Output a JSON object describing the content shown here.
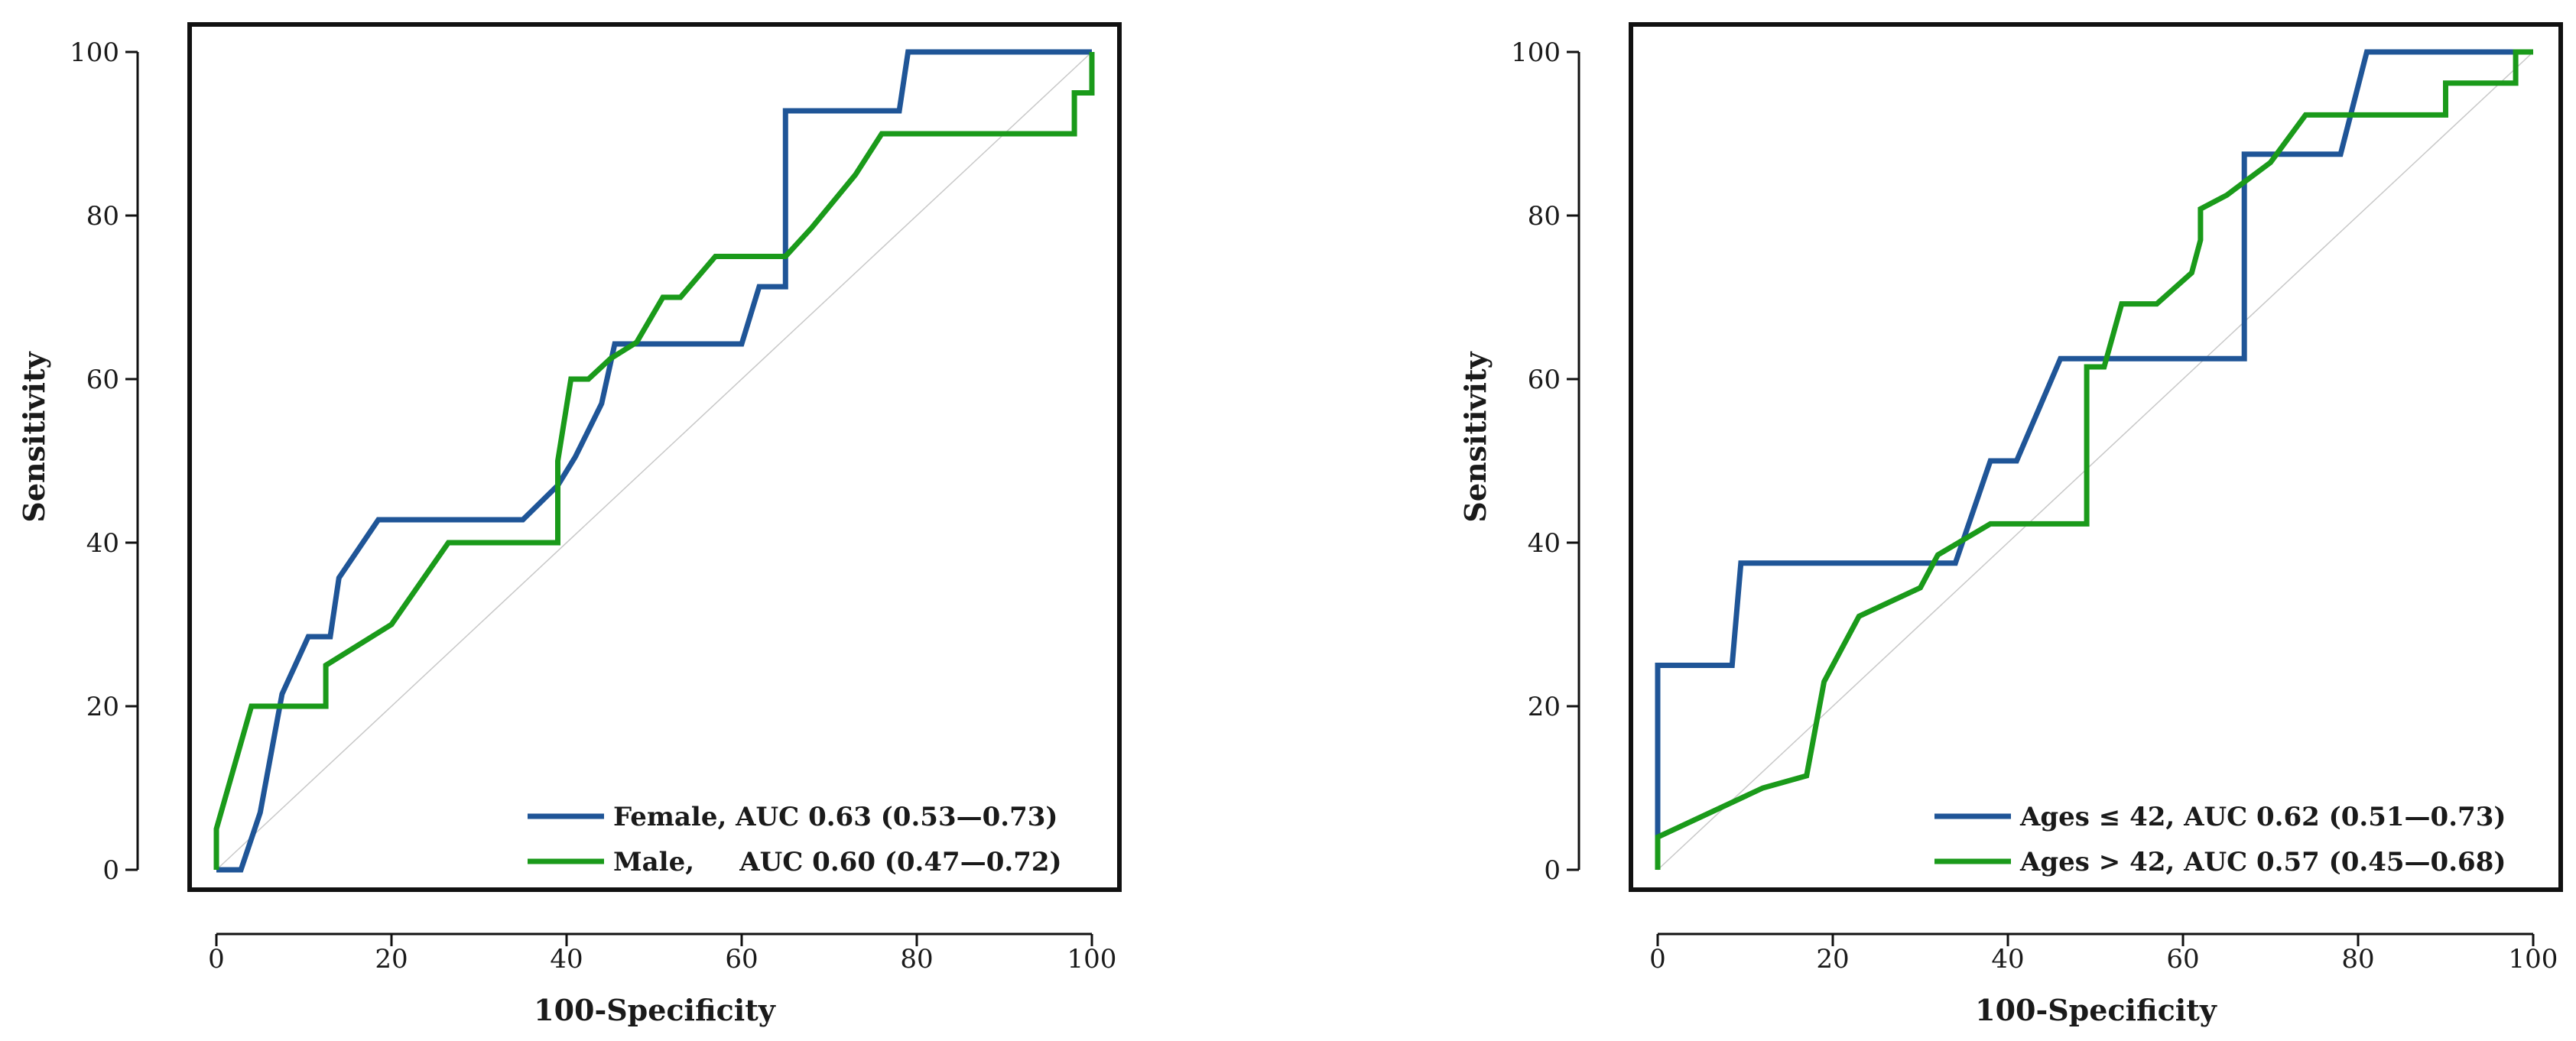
{
  "chart_data": [
    {
      "type": "line",
      "xlabel": "100-Specificity",
      "ylabel": "Sensitivity",
      "xlim": [
        0,
        100
      ],
      "ylim": [
        0,
        100
      ],
      "xticks": [
        "0",
        "20",
        "40",
        "60",
        "80",
        "100"
      ],
      "yticks": [
        "0",
        "20",
        "40",
        "60",
        "80",
        "100"
      ],
      "legend_position": "bottom-right",
      "series": [
        {
          "name": "Female",
          "legend_label": "Female, AUC 0.63 (0.53—0.73)",
          "color": "#1f5597",
          "points": [
            [
              0,
              0
            ],
            [
              2.8,
              0
            ],
            [
              5,
              7
            ],
            [
              7.5,
              21.5
            ],
            [
              10.5,
              28.5
            ],
            [
              13,
              28.5
            ],
            [
              14,
              35.7
            ],
            [
              18.5,
              42.8
            ],
            [
              35,
              42.8
            ],
            [
              39,
              47
            ],
            [
              41,
              50.5
            ],
            [
              44,
              57
            ],
            [
              45.5,
              64.3
            ],
            [
              60,
              64.3
            ],
            [
              62,
              71.3
            ],
            [
              65,
              71.3
            ],
            [
              65,
              92.8
            ],
            [
              78,
              92.8
            ],
            [
              79,
              100
            ],
            [
              100,
              100
            ]
          ]
        },
        {
          "name": "Male",
          "legend_label": "Male,     AUC 0.60 (0.47—0.72)",
          "color": "#1a9a1a",
          "points": [
            [
              0,
              0
            ],
            [
              0,
              5
            ],
            [
              4,
              20
            ],
            [
              12.5,
              20
            ],
            [
              12.5,
              25
            ],
            [
              20,
              30
            ],
            [
              26.5,
              40
            ],
            [
              39,
              40
            ],
            [
              39,
              50
            ],
            [
              40.5,
              60
            ],
            [
              42.5,
              60
            ],
            [
              45,
              62.5
            ],
            [
              48,
              64.5
            ],
            [
              51,
              70
            ],
            [
              53,
              70
            ],
            [
              57,
              75
            ],
            [
              65,
              75
            ],
            [
              68,
              78.5
            ],
            [
              73,
              85
            ],
            [
              76,
              90
            ],
            [
              98,
              90
            ],
            [
              98,
              95
            ],
            [
              100,
              95
            ],
            [
              100,
              100
            ]
          ]
        }
      ]
    },
    {
      "type": "line",
      "xlabel": "100-Specificity",
      "ylabel": "Sensitivity",
      "xlim": [
        0,
        100
      ],
      "ylim": [
        0,
        100
      ],
      "xticks": [
        "0",
        "20",
        "40",
        "60",
        "80",
        "100"
      ],
      "yticks": [
        "0",
        "20",
        "40",
        "60",
        "80",
        "100"
      ],
      "legend_position": "bottom-right",
      "series": [
        {
          "name": "Ages ≤ 42",
          "legend_label": "Ages ≤ 42, AUC 0.62 (0.51—0.73)",
          "color": "#1f5597",
          "points": [
            [
              0,
              0
            ],
            [
              0,
              25
            ],
            [
              8.5,
              25
            ],
            [
              9.5,
              37.5
            ],
            [
              34,
              37.5
            ],
            [
              38,
              50
            ],
            [
              41,
              50
            ],
            [
              46,
              62.5
            ],
            [
              67,
              62.5
            ],
            [
              67,
              87.5
            ],
            [
              78,
              87.5
            ],
            [
              81,
              100
            ],
            [
              100,
              100
            ]
          ]
        },
        {
          "name": "Ages > 42",
          "legend_label": "Ages > 42, AUC 0.57 (0.45—0.68)",
          "color": "#1a9a1a",
          "points": [
            [
              0,
              0
            ],
            [
              0,
              4
            ],
            [
              4,
              6
            ],
            [
              8,
              8
            ],
            [
              12,
              10
            ],
            [
              17,
              11.5
            ],
            [
              19,
              23
            ],
            [
              23,
              31
            ],
            [
              30,
              34.5
            ],
            [
              32,
              38.5
            ],
            [
              38,
              42.3
            ],
            [
              49,
              42.3
            ],
            [
              49,
              61.5
            ],
            [
              51,
              61.5
            ],
            [
              53,
              69.2
            ],
            [
              57,
              69.2
            ],
            [
              61,
              73
            ],
            [
              62,
              77
            ],
            [
              62,
              80.8
            ],
            [
              65,
              82.5
            ],
            [
              70,
              86.5
            ],
            [
              74,
              92.3
            ],
            [
              90,
              92.3
            ],
            [
              90,
              96.2
            ],
            [
              98,
              96.2
            ],
            [
              98,
              100
            ],
            [
              100,
              100
            ]
          ]
        }
      ]
    }
  ]
}
